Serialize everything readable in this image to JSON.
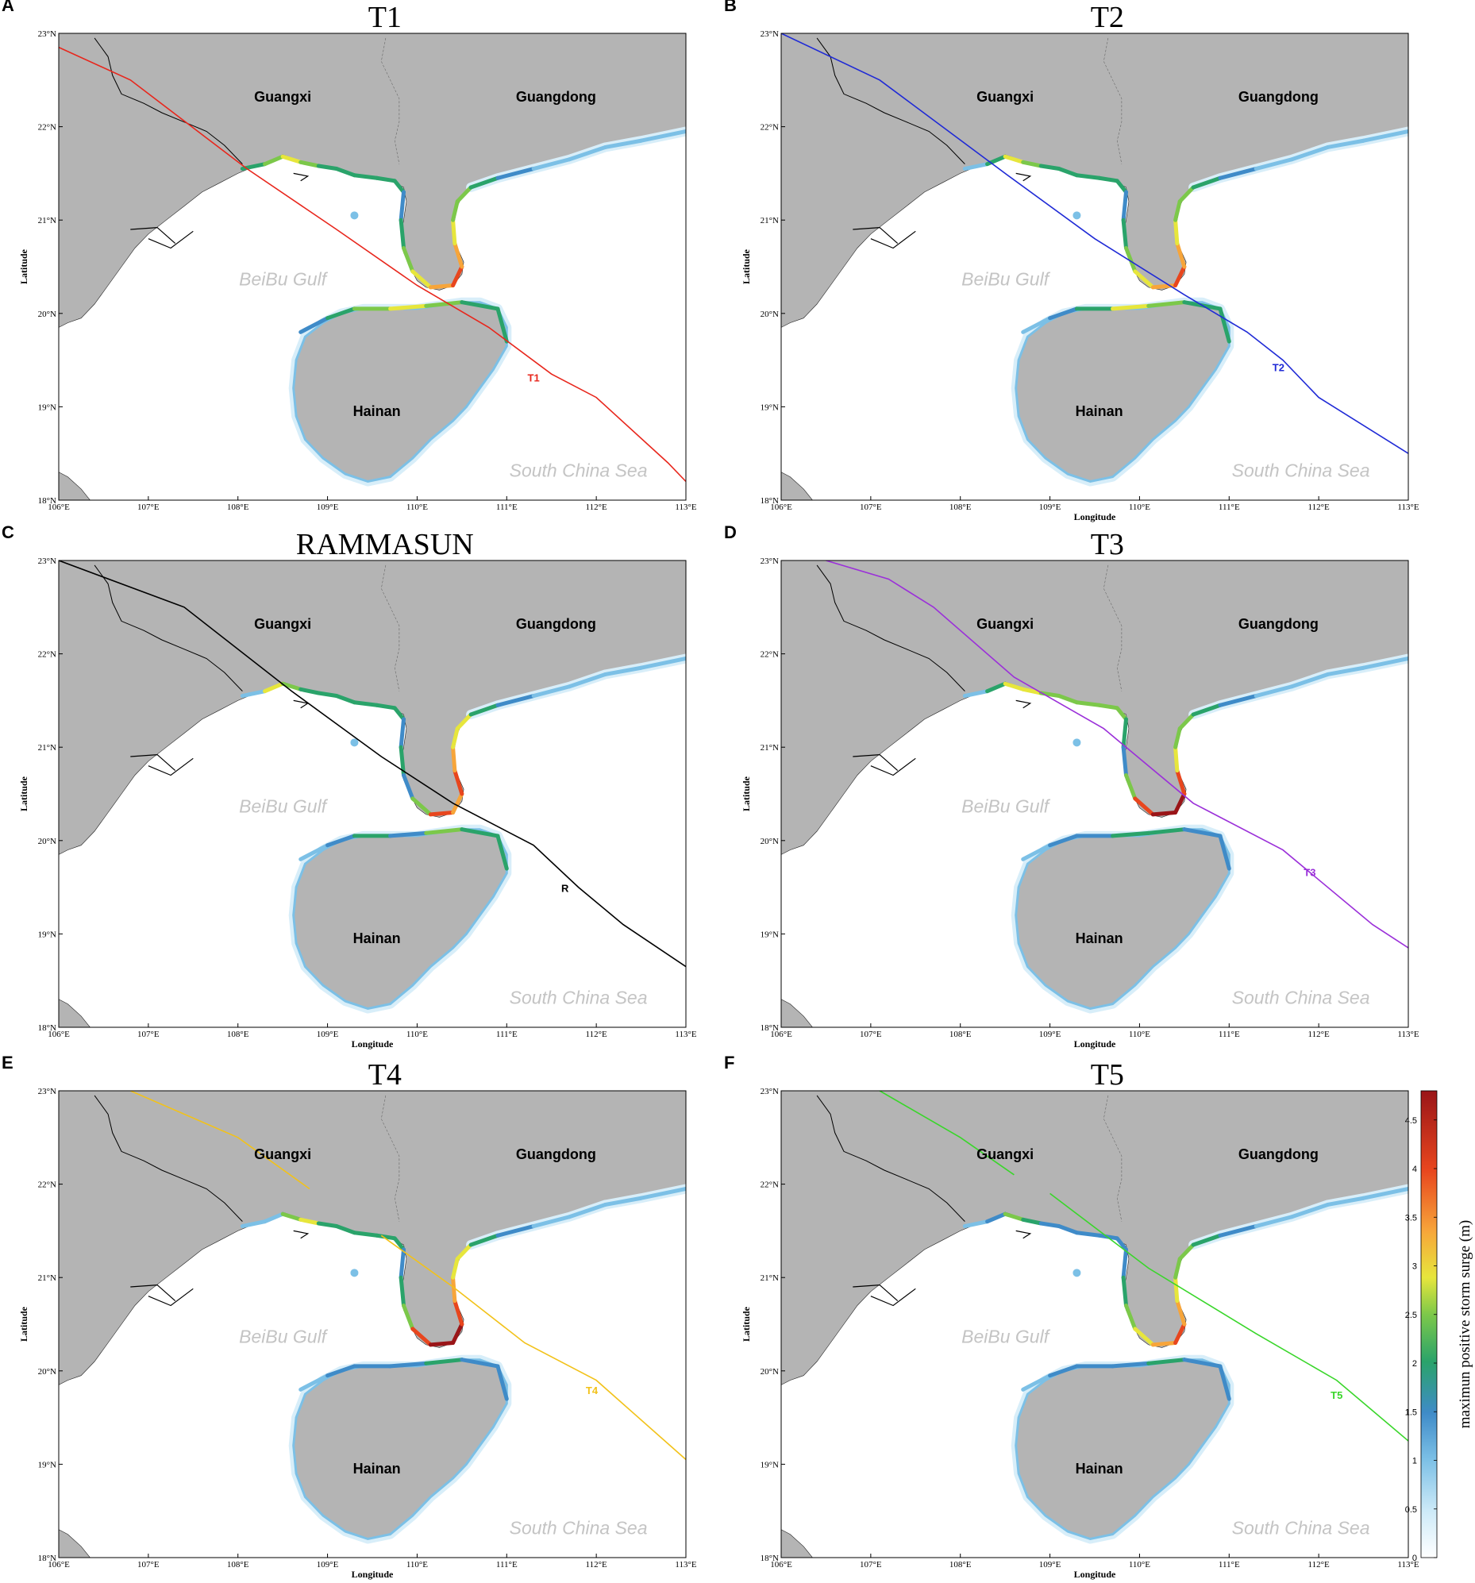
{
  "figure": {
    "panels": [
      {
        "letter": "A",
        "title": "T1",
        "track_label": "T1",
        "track_color": "#e8261c"
      },
      {
        "letter": "B",
        "title": "T2",
        "track_label": "T2",
        "track_color": "#1f2ad6"
      },
      {
        "letter": "C",
        "title": "RAMMASUN",
        "track_label": "R",
        "track_color": "#000000"
      },
      {
        "letter": "D",
        "title": "T3",
        "track_label": "T3",
        "track_color": "#9b30d9"
      },
      {
        "letter": "E",
        "title": "T4",
        "track_label": "T4",
        "track_color": "#f2c21a"
      },
      {
        "letter": "F",
        "title": "T5",
        "track_label": "T5",
        "track_color": "#39d62a"
      }
    ],
    "region_labels": {
      "guangxi": "Guangxi",
      "guangdong": "Guangdong",
      "hainan": "Hainan"
    },
    "sea_labels": {
      "beibu": "BeiBu Gulf",
      "scs": "South China Sea"
    },
    "axes": {
      "xlabel": "Longitude",
      "ylabel": "Latitude",
      "x_ticks": [
        "106°E",
        "107°E",
        "108°E",
        "109°E",
        "110°E",
        "111°E",
        "112°E",
        "113°E"
      ],
      "y_ticks": [
        "23°N",
        "22°N",
        "21°N",
        "20°N",
        "19°N",
        "18°N"
      ]
    },
    "colorbar": {
      "title": "maximun positive storm surge  (m)",
      "ticks": [
        "0",
        "0.5",
        "1",
        "1.5",
        "2",
        "2.5",
        "3",
        "3.5",
        "4",
        "4.5"
      ],
      "range": [
        0,
        4.8
      ],
      "colors": [
        "#ffffff",
        "#bfe6f7",
        "#6bb4e0",
        "#3c86c6",
        "#2aa06a",
        "#6cc24a",
        "#e6e63a",
        "#f7a23a",
        "#e8461e",
        "#a3171a"
      ]
    },
    "colors": {
      "land": "#b4b4b4",
      "sea": "#ffffff",
      "border": "#000000"
    }
  },
  "chart_data": {
    "type": "map",
    "map_extent": {
      "lon": [
        106,
        113
      ],
      "lat": [
        18,
        23
      ]
    },
    "tracks": [
      {
        "name": "T1",
        "lon": [
          106,
          106.8,
          108.1,
          109.1,
          110.0,
          110.8,
          111.5,
          112.0,
          112.8,
          113.0
        ],
        "lat": [
          22.85,
          22.5,
          21.55,
          20.9,
          20.3,
          19.85,
          19.35,
          19.1,
          18.4,
          18.2
        ]
      },
      {
        "name": "T2",
        "lon": [
          106,
          107.1,
          108.5,
          109.5,
          110.5,
          111.2,
          111.6,
          112.0,
          113.0
        ],
        "lat": [
          23.0,
          22.5,
          21.5,
          20.8,
          20.2,
          19.8,
          19.5,
          19.1,
          18.5
        ]
      },
      {
        "name": "R",
        "lon": [
          106,
          107.4,
          108.6,
          109.6,
          110.4,
          111.3,
          111.8,
          112.3,
          113.0
        ],
        "lat": [
          23.0,
          22.5,
          21.6,
          20.9,
          20.4,
          19.95,
          19.5,
          19.1,
          18.65
        ]
      },
      {
        "name": "T3",
        "lon": [
          106.5,
          107.2,
          107.7,
          108.6,
          109.6,
          110.6,
          111.6,
          112.6,
          113.0
        ],
        "lat": [
          23.0,
          22.8,
          22.5,
          21.75,
          21.2,
          20.4,
          19.9,
          19.1,
          18.85
        ]
      },
      {
        "name": "T4",
        "lon": [
          106.8,
          108.0,
          108.8
        ],
        "lat": [
          23.0,
          22.5,
          21.95
        ]
      },
      {
        "name": "T4",
        "lon": [
          109.6,
          110.4,
          111.2,
          112.0,
          113.0
        ],
        "lat": [
          21.45,
          20.9,
          20.3,
          19.9,
          19.05
        ]
      },
      {
        "name": "T5",
        "lon": [
          107.1,
          108.0,
          108.6
        ],
        "lat": [
          23.0,
          22.5,
          22.1
        ]
      },
      {
        "name": "T5",
        "lon": [
          109.0,
          110.1,
          111.3,
          112.2,
          113.0
        ],
        "lat": [
          21.9,
          21.1,
          20.4,
          19.9,
          19.25
        ]
      }
    ],
    "max_surge_hotspots": [
      {
        "panel": "A",
        "max_m": 4.0
      },
      {
        "panel": "B",
        "max_m": 3.5
      },
      {
        "panel": "C",
        "max_m": 4.0
      },
      {
        "panel": "D",
        "max_m": 4.8
      },
      {
        "panel": "E",
        "max_m": 4.8
      },
      {
        "panel": "F",
        "max_m": 3.5
      }
    ]
  }
}
